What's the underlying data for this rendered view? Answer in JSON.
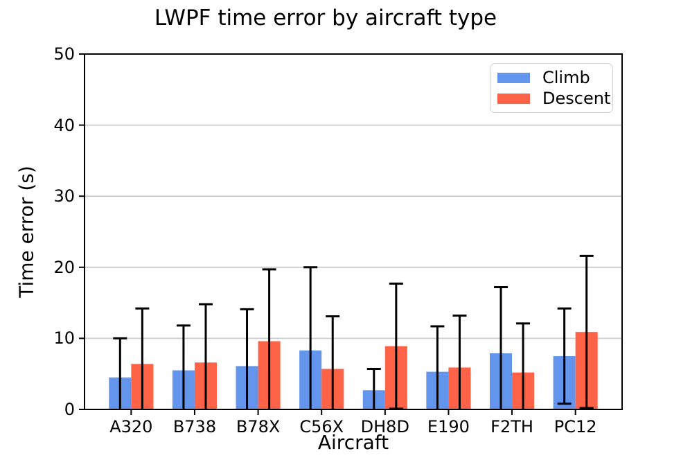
{
  "title": "LWPF time error by aircraft type",
  "axes": {
    "xlabel": "Aircraft",
    "ylabel": "Time error (s)"
  },
  "legend": {
    "items": [
      {
        "label": "Climb",
        "color": "#6495ED"
      },
      {
        "label": "Descent",
        "color": "#FF6347"
      }
    ]
  },
  "chart_data": {
    "type": "bar",
    "title": "LWPF time error by aircraft type",
    "xlabel": "Aircraft",
    "ylabel": "Time error (s)",
    "ylim": [
      0,
      50
    ],
    "yticks": [
      0,
      10,
      20,
      30,
      40,
      50
    ],
    "grid": true,
    "grid_color": "#cccccc",
    "legend_position": "upper right",
    "error_bar_color": "#000000",
    "bar_group_width_units": 0.7,
    "categories": [
      "A320",
      "B738",
      "B78X",
      "C56X",
      "DH8D",
      "E190",
      "F2TH",
      "PC12"
    ],
    "series": [
      {
        "name": "Climb",
        "color": "#6495ED",
        "values": [
          4.5,
          5.5,
          6.1,
          8.3,
          2.7,
          5.3,
          7.9,
          7.5
        ],
        "errors": [
          5.5,
          6.3,
          8.0,
          11.7,
          3.0,
          6.4,
          9.3,
          6.7
        ]
      },
      {
        "name": "Descent",
        "color": "#FF6347",
        "values": [
          6.4,
          6.6,
          9.6,
          5.7,
          8.9,
          5.9,
          5.2,
          10.9
        ],
        "errors": [
          7.8,
          8.2,
          10.1,
          7.4,
          8.8,
          7.3,
          6.9,
          10.7
        ]
      }
    ]
  }
}
